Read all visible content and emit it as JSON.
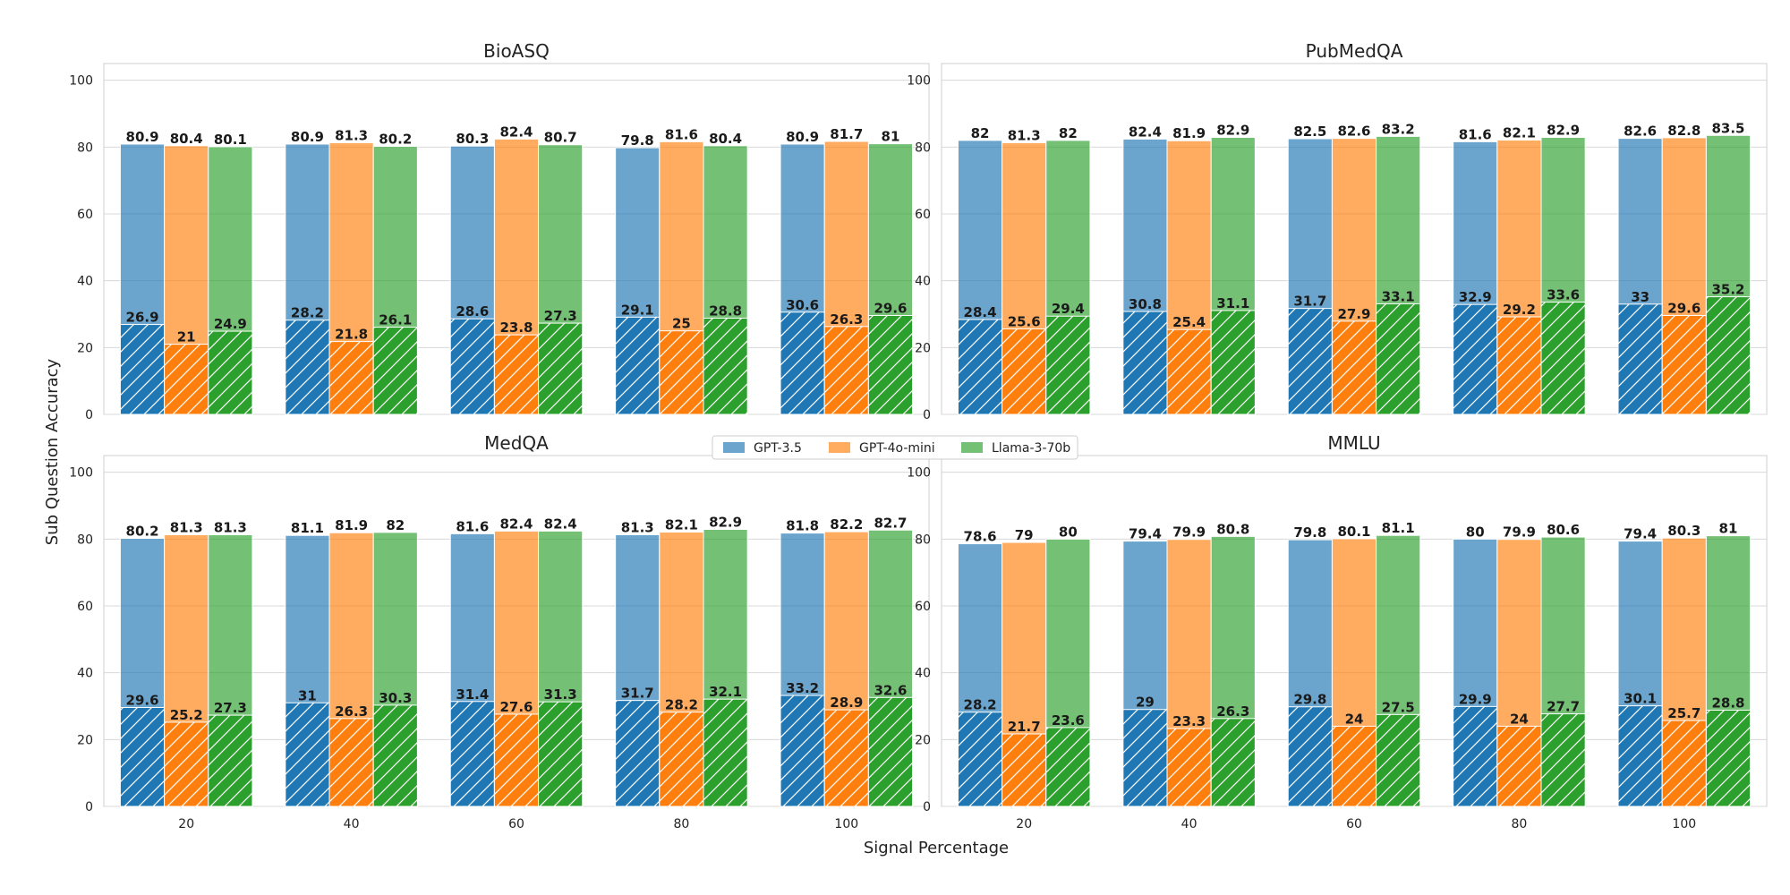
{
  "figure": {
    "ylabel": "Sub Question Accuracy",
    "xlabel": "Signal Percentage"
  },
  "legend": {
    "items": [
      {
        "name": "GPT-3.5",
        "color": "#1f77b4"
      },
      {
        "name": "GPT-4o-mini",
        "color": "#ff7f0e"
      },
      {
        "name": "Llama-3-70b",
        "color": "#2ca02c"
      }
    ]
  },
  "chart_data": [
    {
      "type": "bar",
      "title": "BioASQ",
      "categories": [
        "20",
        "40",
        "60",
        "80",
        "100"
      ],
      "ylim": [
        0,
        105
      ],
      "yticks": [
        0,
        20,
        40,
        60,
        80,
        100
      ],
      "overall": [
        {
          "name": "GPT-3.5",
          "values": [
            80.9,
            80.9,
            80.3,
            79.8,
            80.9
          ]
        },
        {
          "name": "GPT-4o-mini",
          "values": [
            80.4,
            81.3,
            82.4,
            81.6,
            81.7
          ]
        },
        {
          "name": "Llama-3-70b",
          "values": [
            80.1,
            80.2,
            80.7,
            80.4,
            81
          ]
        }
      ],
      "hatched": [
        {
          "name": "GPT-3.5",
          "values": [
            26.9,
            28.2,
            28.6,
            29.1,
            30.6
          ]
        },
        {
          "name": "GPT-4o-mini",
          "values": [
            21,
            21.8,
            23.8,
            25,
            26.3
          ]
        },
        {
          "name": "Llama-3-70b",
          "values": [
            24.9,
            26.1,
            27.3,
            28.8,
            29.6
          ]
        }
      ]
    },
    {
      "type": "bar",
      "title": "PubMedQA",
      "categories": [
        "20",
        "40",
        "60",
        "80",
        "100"
      ],
      "ylim": [
        0,
        105
      ],
      "yticks": [
        0,
        20,
        40,
        60,
        80,
        100
      ],
      "overall": [
        {
          "name": "GPT-3.5",
          "values": [
            82,
            82.4,
            82.5,
            81.6,
            82.6
          ]
        },
        {
          "name": "GPT-4o-mini",
          "values": [
            81.3,
            81.9,
            82.6,
            82.1,
            82.8
          ]
        },
        {
          "name": "Llama-3-70b",
          "values": [
            82,
            82.9,
            83.2,
            82.9,
            83.5
          ]
        }
      ],
      "hatched": [
        {
          "name": "GPT-3.5",
          "values": [
            28.4,
            30.8,
            31.7,
            32.9,
            33
          ]
        },
        {
          "name": "GPT-4o-mini",
          "values": [
            25.6,
            25.4,
            27.9,
            29.2,
            29.6
          ]
        },
        {
          "name": "Llama-3-70b",
          "values": [
            29.4,
            31.1,
            33.1,
            33.6,
            35.2
          ]
        }
      ]
    },
    {
      "type": "bar",
      "title": "MedQA",
      "categories": [
        "20",
        "40",
        "60",
        "80",
        "100"
      ],
      "ylim": [
        0,
        105
      ],
      "yticks": [
        0,
        20,
        40,
        60,
        80,
        100
      ],
      "overall": [
        {
          "name": "GPT-3.5",
          "values": [
            80.2,
            81.1,
            81.6,
            81.3,
            81.8
          ]
        },
        {
          "name": "GPT-4o-mini",
          "values": [
            81.3,
            81.9,
            82.4,
            82.1,
            82.2
          ]
        },
        {
          "name": "Llama-3-70b",
          "values": [
            81.3,
            82,
            82.4,
            82.9,
            82.7
          ]
        }
      ],
      "hatched": [
        {
          "name": "GPT-3.5",
          "values": [
            29.6,
            31,
            31.4,
            31.7,
            33.2
          ]
        },
        {
          "name": "GPT-4o-mini",
          "values": [
            25.2,
            26.3,
            27.6,
            28.2,
            28.9
          ]
        },
        {
          "name": "Llama-3-70b",
          "values": [
            27.3,
            30.3,
            31.3,
            32.1,
            32.6
          ]
        }
      ]
    },
    {
      "type": "bar",
      "title": "MMLU",
      "categories": [
        "20",
        "40",
        "60",
        "80",
        "100"
      ],
      "ylim": [
        0,
        105
      ],
      "yticks": [
        0,
        20,
        40,
        60,
        80,
        100
      ],
      "overall": [
        {
          "name": "GPT-3.5",
          "values": [
            78.6,
            79.4,
            79.8,
            80,
            79.4
          ]
        },
        {
          "name": "GPT-4o-mini",
          "values": [
            79,
            79.9,
            80.1,
            79.9,
            80.3
          ]
        },
        {
          "name": "Llama-3-70b",
          "values": [
            80,
            80.8,
            81.1,
            80.6,
            81
          ]
        }
      ],
      "hatched": [
        {
          "name": "GPT-3.5",
          "values": [
            28.2,
            29,
            29.8,
            29.9,
            30.1
          ]
        },
        {
          "name": "GPT-4o-mini",
          "values": [
            21.7,
            23.3,
            24,
            24,
            25.7
          ]
        },
        {
          "name": "Llama-3-70b",
          "values": [
            23.6,
            26.3,
            27.5,
            27.7,
            28.8
          ]
        }
      ]
    }
  ]
}
